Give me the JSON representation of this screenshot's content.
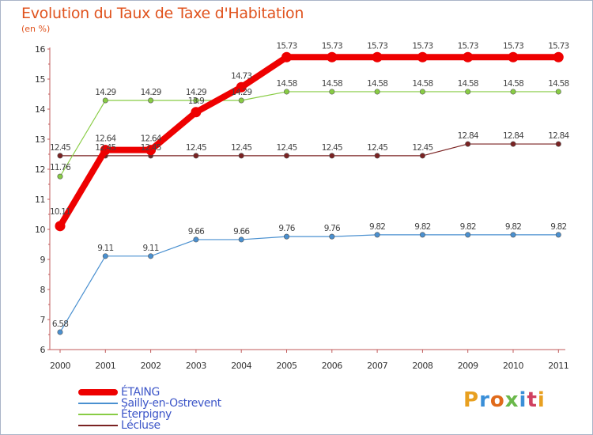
{
  "header": {
    "title": "Evolution du Taux de Taxe d'Habitation",
    "unit": "(en %)"
  },
  "chart_data": {
    "type": "line",
    "title": "Evolution du Taux de Taxe d'Habitation",
    "ylabel": "(en %)",
    "xlabel": "",
    "ylim": [
      6,
      16
    ],
    "yticks": [
      "6",
      "7",
      "8",
      "9",
      "10",
      "11",
      "12",
      "13",
      "14",
      "15",
      "16"
    ],
    "categories": [
      "2000",
      "2001",
      "2002",
      "2003",
      "2004",
      "2005",
      "2006",
      "2007",
      "2008",
      "2009",
      "2010",
      "2011"
    ],
    "grid": false,
    "series": [
      {
        "name": "ÉTAING",
        "color": "#ee0000",
        "bold": true,
        "values": [
          10.11,
          12.64,
          12.64,
          13.9,
          14.73,
          15.73,
          15.73,
          15.73,
          15.73,
          15.73,
          15.73,
          15.73
        ],
        "labels": [
          "10.11",
          "12.64",
          "12.64",
          "13.9",
          "14.73",
          "15.73",
          "15.73",
          "15.73",
          "15.73",
          "15.73",
          "15.73",
          "15.73"
        ]
      },
      {
        "name": "Sailly-en-Ostrevent",
        "color": "#4a90d0",
        "bold": false,
        "values": [
          6.58,
          9.11,
          9.11,
          9.66,
          9.66,
          9.76,
          9.76,
          9.82,
          9.82,
          9.82,
          9.82,
          9.82
        ],
        "labels": [
          "6.58",
          "9.11",
          "9.11",
          "9.66",
          "9.66",
          "9.76",
          "9.76",
          "9.82",
          "9.82",
          "9.82",
          "9.82",
          "9.82"
        ]
      },
      {
        "name": "Éterpigny",
        "color": "#88cc44",
        "bold": false,
        "values": [
          11.76,
          14.29,
          14.29,
          14.29,
          14.29,
          14.58,
          14.58,
          14.58,
          14.58,
          14.58,
          14.58,
          14.58
        ],
        "labels": [
          "11.76",
          "14.29",
          "14.29",
          "14.29",
          "14.29",
          "14.58",
          "14.58",
          "14.58",
          "14.58",
          "14.58",
          "14.58",
          "14.58"
        ]
      },
      {
        "name": "Lécluse",
        "color": "#7a2222",
        "bold": false,
        "values": [
          12.45,
          12.45,
          12.45,
          12.45,
          12.45,
          12.45,
          12.45,
          12.45,
          12.45,
          12.84,
          12.84,
          12.84
        ],
        "labels": [
          "12.45",
          "12.45",
          "12.45",
          "12.45",
          "12.45",
          "12.45",
          "12.45",
          "12.45",
          "12.45",
          "12.84",
          "12.84",
          "12.84"
        ]
      }
    ],
    "legend": [
      "ÉTAING",
      "Sailly-en-Ostrevent",
      "Éterpigny",
      "Lécluse"
    ]
  },
  "logo": {
    "letters": [
      "P",
      "r",
      "o",
      "x",
      "i",
      "t",
      "i"
    ],
    "colors": [
      "#e8a020",
      "#3a8fd8",
      "#e06a1a",
      "#6ab84a",
      "#3a8fd8",
      "#d04060",
      "#e8a020"
    ]
  }
}
